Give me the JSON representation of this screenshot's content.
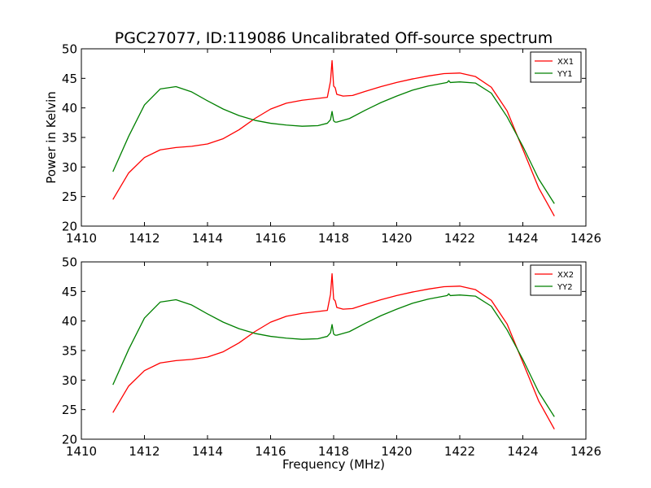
{
  "title": "PGC27077, ID:119086 Uncalibrated Off-source spectrum",
  "chart_data": [
    {
      "type": "line",
      "xlabel": "",
      "ylabel": "Power in Kelvin",
      "xlim": [
        1410,
        1426
      ],
      "ylim": [
        20,
        50
      ],
      "xticks": [
        1410,
        1412,
        1414,
        1416,
        1418,
        1420,
        1422,
        1424,
        1426
      ],
      "yticks": [
        20,
        25,
        30,
        35,
        40,
        45,
        50
      ],
      "legend": "top-right",
      "grid": false,
      "series": [
        {
          "name": "XX1",
          "color": "#ff0000",
          "x": [
            1411,
            1411.5,
            1412,
            1412.5,
            1413,
            1413.5,
            1414,
            1414.5,
            1415,
            1415.5,
            1416,
            1416.5,
            1417,
            1417.5,
            1417.8,
            1417.9,
            1417.95,
            1418.0,
            1418.05,
            1418.1,
            1418.3,
            1418.6,
            1419,
            1419.5,
            1420,
            1420.5,
            1421,
            1421.5,
            1422,
            1422.5,
            1423,
            1423.5,
            1424,
            1424.5,
            1425
          ],
          "y": [
            24.5,
            29.0,
            31.6,
            32.9,
            33.3,
            33.5,
            33.9,
            34.8,
            36.3,
            38.2,
            39.8,
            40.8,
            41.3,
            41.6,
            41.8,
            44.5,
            48.0,
            43.7,
            43.4,
            42.3,
            42.0,
            42.1,
            42.8,
            43.6,
            44.3,
            44.9,
            45.4,
            45.8,
            45.9,
            45.3,
            43.5,
            39.5,
            33.0,
            26.5,
            21.7
          ]
        },
        {
          "name": "YY1",
          "color": "#008000",
          "x": [
            1411,
            1411.5,
            1412,
            1412.5,
            1413,
            1413.5,
            1414,
            1414.5,
            1415,
            1415.5,
            1416,
            1416.5,
            1417,
            1417.5,
            1417.8,
            1417.9,
            1417.95,
            1418.0,
            1418.05,
            1418.1,
            1418.5,
            1419,
            1419.5,
            1420,
            1420.5,
            1421,
            1421.5,
            1421.6,
            1421.65,
            1421.7,
            1422,
            1422.5,
            1423,
            1423.5,
            1424,
            1424.5,
            1425
          ],
          "y": [
            29.2,
            35.2,
            40.5,
            43.2,
            43.6,
            42.7,
            41.2,
            39.8,
            38.7,
            37.9,
            37.4,
            37.1,
            36.9,
            37.0,
            37.4,
            38.0,
            39.4,
            37.8,
            37.6,
            37.6,
            38.2,
            39.6,
            40.9,
            42.0,
            43.0,
            43.7,
            44.2,
            44.3,
            44.6,
            44.3,
            44.4,
            44.2,
            42.5,
            38.5,
            33.5,
            28.0,
            23.8
          ]
        }
      ]
    },
    {
      "type": "line",
      "xlabel": "Frequency (MHz)",
      "ylabel": "",
      "xlim": [
        1410,
        1426
      ],
      "ylim": [
        20,
        50
      ],
      "xticks": [
        1410,
        1412,
        1414,
        1416,
        1418,
        1420,
        1422,
        1424,
        1426
      ],
      "yticks": [
        20,
        25,
        30,
        35,
        40,
        45,
        50
      ],
      "legend": "top-right",
      "grid": false,
      "series": [
        {
          "name": "XX2",
          "color": "#ff0000",
          "x": [
            1411,
            1411.5,
            1412,
            1412.5,
            1413,
            1413.5,
            1414,
            1414.5,
            1415,
            1415.5,
            1416,
            1416.5,
            1417,
            1417.5,
            1417.8,
            1417.9,
            1417.95,
            1418.0,
            1418.05,
            1418.1,
            1418.3,
            1418.6,
            1419,
            1419.5,
            1420,
            1420.5,
            1421,
            1421.5,
            1422,
            1422.5,
            1423,
            1423.5,
            1424,
            1424.5,
            1425
          ],
          "y": [
            24.5,
            29.0,
            31.6,
            32.9,
            33.3,
            33.5,
            33.9,
            34.8,
            36.3,
            38.2,
            39.8,
            40.8,
            41.3,
            41.6,
            41.8,
            44.5,
            48.0,
            43.7,
            43.4,
            42.3,
            42.0,
            42.1,
            42.8,
            43.6,
            44.3,
            44.9,
            45.4,
            45.8,
            45.9,
            45.3,
            43.5,
            39.5,
            33.0,
            26.5,
            21.7
          ]
        },
        {
          "name": "YY2",
          "color": "#008000",
          "x": [
            1411,
            1411.5,
            1412,
            1412.5,
            1413,
            1413.5,
            1414,
            1414.5,
            1415,
            1415.5,
            1416,
            1416.5,
            1417,
            1417.5,
            1417.8,
            1417.9,
            1417.95,
            1418.0,
            1418.05,
            1418.1,
            1418.5,
            1419,
            1419.5,
            1420,
            1420.5,
            1421,
            1421.5,
            1421.6,
            1421.65,
            1421.7,
            1422,
            1422.5,
            1423,
            1423.5,
            1424,
            1424.5,
            1425
          ],
          "y": [
            29.2,
            35.2,
            40.5,
            43.2,
            43.6,
            42.7,
            41.2,
            39.8,
            38.7,
            37.9,
            37.4,
            37.1,
            36.9,
            37.0,
            37.4,
            38.0,
            39.4,
            37.8,
            37.6,
            37.6,
            38.2,
            39.6,
            40.9,
            42.0,
            43.0,
            43.7,
            44.2,
            44.3,
            44.6,
            44.3,
            44.4,
            44.2,
            42.5,
            38.5,
            33.5,
            28.0,
            23.8
          ]
        }
      ]
    }
  ]
}
